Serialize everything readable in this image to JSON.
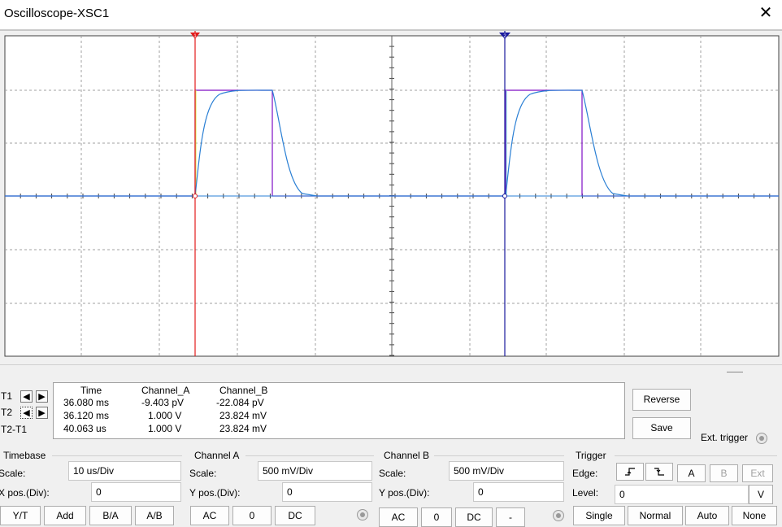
{
  "window": {
    "title": "Oscilloscope-XSC1",
    "close_glyph": "✕"
  },
  "colors": {
    "channel_a": "#7f0fc4",
    "channel_b": "#2a7fd4",
    "cursor1": "#e21b1b",
    "cursor2": "#1a1a9e",
    "grid": "#a0a0a0"
  },
  "cursors": {
    "t1_marker": "1",
    "t2_marker": "2"
  },
  "readout": {
    "headers": {
      "time": "Time",
      "channel_a": "Channel_A",
      "channel_b": "Channel_B"
    },
    "rows": [
      {
        "label": "T1",
        "time": "36.080 ms",
        "channel_a": "-9.403 pV",
        "channel_b": "-22.084 pV"
      },
      {
        "label": "T2",
        "time": "36.120 ms",
        "channel_a": "1.000 V",
        "channel_b": "23.824 mV"
      },
      {
        "label": "T2-T1",
        "time": "40.063 us",
        "channel_a": "1.000 V",
        "channel_b": "23.824 mV"
      }
    ]
  },
  "buttons": {
    "reverse": "Reverse",
    "save": "Save",
    "ext_trigger": "Ext. trigger"
  },
  "timebase": {
    "title": "Timebase",
    "scale_label": "Scale:",
    "scale_value": "10 us/Div",
    "xpos_label": "X pos.(Div):",
    "xpos_value": "0",
    "modes": [
      "Y/T",
      "Add",
      "B/A",
      "A/B"
    ]
  },
  "channel_a": {
    "title": "Channel A",
    "scale_label": "Scale:",
    "scale_value": "500 mV/Div",
    "ypos_label": "Y pos.(Div):",
    "ypos_value": "0",
    "coupling": [
      "AC",
      "0",
      "DC"
    ]
  },
  "channel_b": {
    "title": "Channel B",
    "scale_label": "Scale:",
    "scale_value": "500 mV/Div",
    "ypos_label": "Y pos.(Div):",
    "ypos_value": "0",
    "coupling": [
      "AC",
      "0",
      "DC",
      "-"
    ]
  },
  "trigger": {
    "title": "Trigger",
    "edge_label": "Edge:",
    "level_label": "Level:",
    "level_value": "0",
    "level_unit": "V",
    "sources": [
      "A",
      "B",
      "Ext"
    ],
    "modes": [
      "Single",
      "Normal",
      "Auto",
      "None"
    ]
  }
}
